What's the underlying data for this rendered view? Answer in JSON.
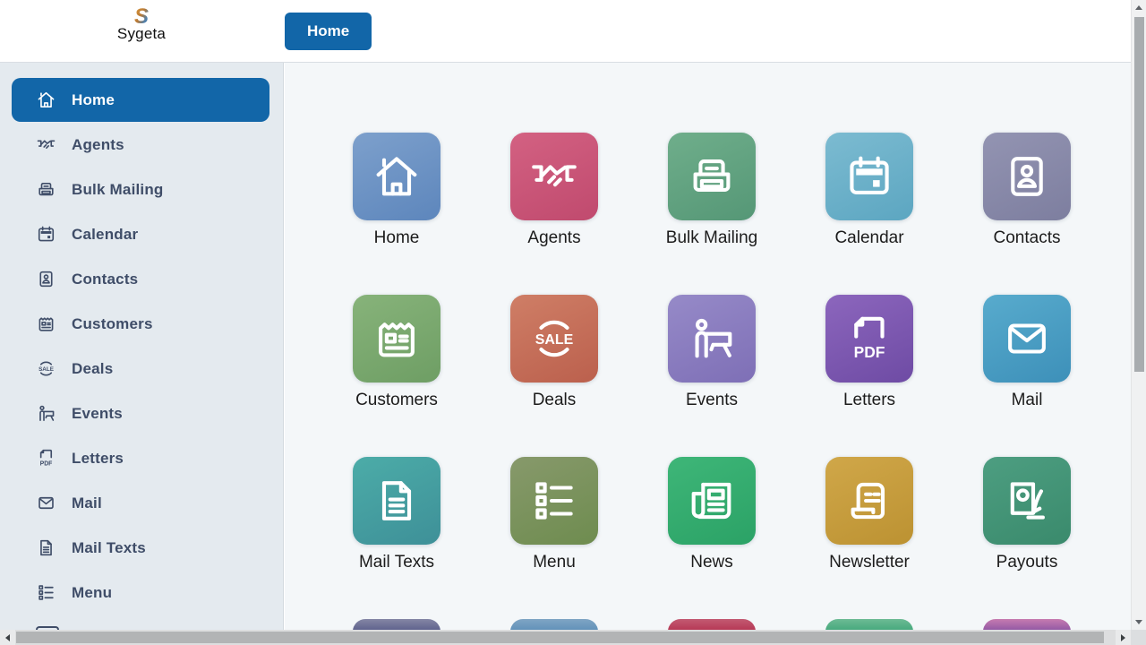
{
  "header": {
    "logo_text": "Sygeta",
    "logo_mark": "S",
    "home_tab": "Home"
  },
  "colors": {
    "accent_blue": "#1266a8",
    "sidebar_bg": "#e4eaef",
    "main_bg": "#f4f7f9",
    "header_bg": "#ffffff",
    "sidebar_text": "#3f4d68",
    "tile_label": "#1c1c1c"
  },
  "icon_texts": {
    "sale_badge": "SALE",
    "pdf_label": "PDF"
  },
  "sidebar": {
    "items": [
      {
        "label": "Home",
        "icon": "house-icon",
        "active": true
      },
      {
        "label": "Agents",
        "icon": "handshake-icon",
        "active": false
      },
      {
        "label": "Bulk Mailing",
        "icon": "printer-icon",
        "active": false
      },
      {
        "label": "Calendar",
        "icon": "calendar-icon",
        "active": false
      },
      {
        "label": "Contacts",
        "icon": "id-card-icon",
        "active": false
      },
      {
        "label": "Customers",
        "icon": "customer-card-icon",
        "active": false
      },
      {
        "label": "Deals",
        "icon": "sale-badge-icon",
        "active": false
      },
      {
        "label": "Events",
        "icon": "presenter-icon",
        "active": false
      },
      {
        "label": "Letters",
        "icon": "pdf-file-icon",
        "active": false
      },
      {
        "label": "Mail",
        "icon": "envelope-icon",
        "active": false
      },
      {
        "label": "Mail Texts",
        "icon": "document-icon",
        "active": false
      },
      {
        "label": "Menu",
        "icon": "list-icon",
        "active": false
      }
    ]
  },
  "tiles": [
    {
      "label": "Home",
      "icon": "house-icon",
      "color_top": "#7da0cc",
      "color_bottom": "#5d86bc"
    },
    {
      "label": "Agents",
      "icon": "handshake-icon",
      "color_top": "#d36182",
      "color_bottom": "#c04a6e"
    },
    {
      "label": "Bulk Mailing",
      "icon": "printer-icon",
      "color_top": "#6fae8b",
      "color_bottom": "#559776"
    },
    {
      "label": "Calendar",
      "icon": "calendar-icon",
      "color_top": "#7cbbd1",
      "color_bottom": "#5ca6c1"
    },
    {
      "label": "Contacts",
      "icon": "id-card-icon",
      "color_top": "#9394b2",
      "color_bottom": "#7d7e9f"
    },
    {
      "label": "Customers",
      "icon": "customer-card-icon",
      "color_top": "#87b37a",
      "color_bottom": "#6e9e64"
    },
    {
      "label": "Deals",
      "icon": "sale-badge-icon",
      "color_top": "#cf7e66",
      "color_bottom": "#bb604d"
    },
    {
      "label": "Events",
      "icon": "presenter-icon",
      "color_top": "#968ac8",
      "color_bottom": "#7e6fb6"
    },
    {
      "label": "Letters",
      "icon": "pdf-file-icon",
      "color_top": "#8c66bd",
      "color_bottom": "#6e4ba4"
    },
    {
      "label": "Mail",
      "icon": "envelope-icon",
      "color_top": "#58abcd",
      "color_bottom": "#3d90b9"
    },
    {
      "label": "Mail Texts",
      "icon": "document-icon",
      "color_top": "#4caca8",
      "color_bottom": "#3e9098"
    },
    {
      "label": "Menu",
      "icon": "list-icon",
      "color_top": "#87996b",
      "color_bottom": "#6e8c4f"
    },
    {
      "label": "News",
      "icon": "newspaper-icon",
      "color_top": "#3eb678",
      "color_bottom": "#2ba266"
    },
    {
      "label": "Newsletter",
      "icon": "scroll-icon",
      "color_top": "#d0a749",
      "color_bottom": "#bc9232"
    },
    {
      "label": "Payouts",
      "icon": "payout-icon",
      "color_top": "#4d9e81",
      "color_bottom": "#3a8a6c"
    }
  ],
  "partial_tiles": [
    {
      "color_top": "#8486a5",
      "color_bottom": "#5a5e8a"
    },
    {
      "color_top": "#7fa5c4",
      "color_bottom": "#5e8fb8"
    },
    {
      "color_top": "#c35a72",
      "color_bottom": "#b53452"
    },
    {
      "color_top": "#6cbb95",
      "color_bottom": "#42a77a"
    },
    {
      "color_top": "#c77bb0",
      "color_bottom": "#8c55a3"
    }
  ],
  "scrollbars": {
    "vertical": {
      "thumb_color": "#a8acaf",
      "track_color": "#f0f1f2"
    },
    "horizontal": {
      "thumb_color": "#b2b4b5",
      "track_color": "#dddedf"
    }
  }
}
